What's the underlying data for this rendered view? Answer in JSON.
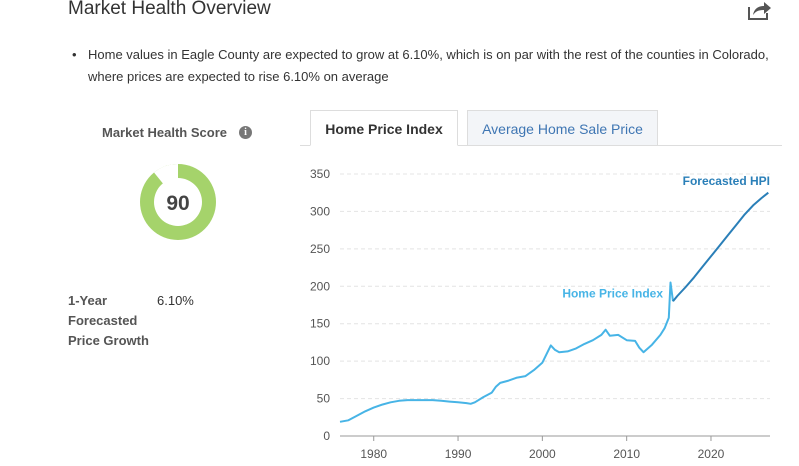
{
  "header": {
    "title": "Market Health Overview",
    "share_icon": "share-icon"
  },
  "summary": {
    "bullet": "Home values in Eagle County are expected to grow at 6.10%, which is on par with the rest of the counties in Colorado, where prices are expected to rise 6.10% on average"
  },
  "score": {
    "label": "Market Health Score",
    "info_icon": "info-icon",
    "value": "90",
    "max": 100,
    "color": "#a5d36b"
  },
  "forecast": {
    "label": "1-Year Forecasted Price Growth",
    "value": "6.10%"
  },
  "tabs": [
    {
      "label": "Home Price Index",
      "active": true
    },
    {
      "label": "Average Home Sale Price",
      "active": false
    }
  ],
  "colors": {
    "hpi_line": "#47b4e6",
    "forecast_line": "#2a7fb8",
    "tab_link": "#3f76b3",
    "gauge": "#a5d36b"
  },
  "chart_data": {
    "type": "line",
    "xlim": [
      1976,
      2027
    ],
    "ylim": [
      0,
      350
    ],
    "x_ticks": [
      1980,
      1990,
      2000,
      2010,
      2020
    ],
    "y_ticks": [
      0,
      50,
      100,
      150,
      200,
      250,
      300,
      350
    ],
    "grid": true,
    "series": [
      {
        "name": "Home Price Index",
        "x": [
          1976,
          1977,
          1978,
          1979,
          1980,
          1981,
          1982,
          1983,
          1984,
          1985,
          1986,
          1987,
          1988,
          1989,
          1990,
          1991,
          1991.5,
          1992,
          1993,
          1994,
          1994.5,
          1995,
          1996,
          1997,
          1998,
          1999,
          2000,
          2001,
          2001.5,
          2002,
          2003,
          2004,
          2005,
          2006,
          2007,
          2007.5,
          2008,
          2009,
          2010,
          2011,
          2011.5,
          2012,
          2013,
          2014,
          2014.5,
          2015,
          2015.2,
          2015.5
        ],
        "y": [
          19,
          21,
          27,
          33,
          38,
          42,
          45,
          47,
          48,
          48,
          48,
          48,
          47,
          46,
          45,
          44,
          43,
          45,
          52,
          58,
          66,
          71,
          74,
          78,
          80,
          88,
          98,
          121,
          115,
          112,
          113,
          117,
          123,
          128,
          135,
          142,
          134,
          135,
          128,
          127,
          118,
          112,
          122,
          135,
          144,
          158,
          205,
          180
        ]
      },
      {
        "name": "Forecasted HPI",
        "x": [
          2015.5,
          2016,
          2017,
          2018,
          2019,
          2020,
          2021,
          2022,
          2023,
          2024,
          2025,
          2026,
          2026.8
        ],
        "y": [
          180,
          187,
          199,
          212,
          226,
          240,
          254,
          268,
          282,
          296,
          308,
          318,
          325
        ]
      }
    ]
  }
}
